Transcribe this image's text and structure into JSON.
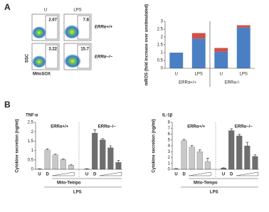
{
  "panel_labels": [
    "A",
    "B"
  ],
  "flow": {
    "columns": [
      "U",
      "LPS"
    ],
    "rows": [
      "ERRα+/+",
      "ERRα−/−"
    ],
    "percentages": [
      [
        2.67,
        7.8
      ],
      [
        3.22,
        15.7
      ]
    ],
    "ylabel": "SSC",
    "xlabel": "MitoSOX"
  },
  "chart_data": [
    {
      "type": "stacked_bar",
      "ylabel": "mROS (fold increase over unstimulated)",
      "categories": [
        "U",
        "LPS",
        "U",
        "LPS"
      ],
      "x_groups": [
        "ERRa+/+",
        "ERRa-/-"
      ],
      "series": [
        {
          "color": "#4a7fc4",
          "values": [
            1.0,
            1.9,
            1.05,
            2.6
          ]
        },
        {
          "color": "#d0504a",
          "values": [
            0,
            0.35,
            0.25,
            0.15
          ]
        }
      ],
      "ylim": [
        0,
        3
      ],
      "yticks": [
        0,
        0.5,
        1,
        1.5,
        2,
        2.5,
        3
      ]
    },
    {
      "type": "bar",
      "title": "TNF-α",
      "ylabel": "Cytokine secretion (ng/ml)",
      "categories": [
        "U",
        "D",
        null,
        null,
        null
      ],
      "treatment_label": "Mito-Tempo",
      "stimulus_label": "LPS",
      "groups": [
        {
          "name": "ERRα+/+",
          "color": "#c8c8c8",
          "values": [
            0.02,
            1.03,
            0.77,
            0.52,
            0.22
          ],
          "errors": [
            0.01,
            0.06,
            0.04,
            0.04,
            0.04
          ]
        },
        {
          "name": "ERRα−/−",
          "color": "#6e6e6e",
          "values": [
            0.02,
            1.93,
            1.57,
            1.15,
            0.37
          ],
          "errors": [
            0.01,
            0.18,
            0.06,
            0.1,
            0.1
          ]
        }
      ],
      "ylim": [
        0,
        2.5
      ],
      "yticks": [
        0,
        0.5,
        1,
        1.5,
        2,
        2.5
      ]
    },
    {
      "type": "bar",
      "title": "IL-1β",
      "ylabel": "Cytokine secretion (ng/ml)",
      "categories": [
        "U",
        "D",
        null,
        null,
        null
      ],
      "treatment_label": "Mito-Tempo",
      "stimulus_label": "LPS",
      "groups": [
        {
          "name": "ERRα+/+",
          "color": "#c8c8c8",
          "values": [
            0.1,
            4.9,
            3.8,
            3.0,
            1.3
          ],
          "errors": [
            0.05,
            0.2,
            0.25,
            0.3,
            0.6
          ]
        },
        {
          "name": "ERRα−/−",
          "color": "#6e6e6e",
          "values": [
            0.2,
            6.6,
            5.7,
            4.0,
            2.2
          ],
          "errors": [
            0.05,
            0.3,
            0.25,
            0.6,
            0.3
          ]
        }
      ],
      "ylim": [
        0,
        8
      ],
      "yticks": [
        0,
        1,
        2,
        3,
        4,
        5,
        6,
        7,
        8
      ]
    }
  ]
}
